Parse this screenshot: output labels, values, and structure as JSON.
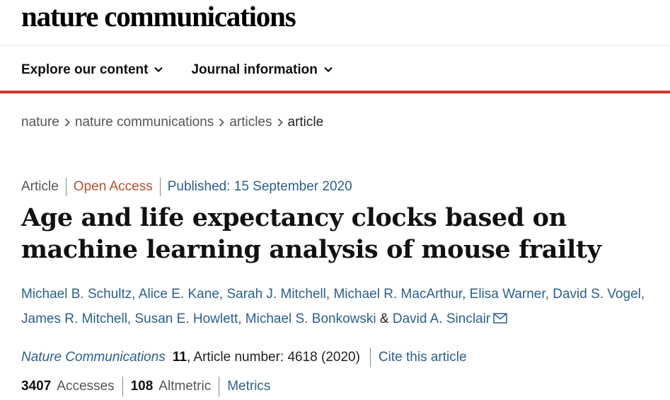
{
  "header": {
    "logo_text": "nature communications",
    "nav": [
      {
        "label": "Explore our content"
      },
      {
        "label": "Journal information"
      }
    ],
    "accent_color": "#d63128"
  },
  "breadcrumb": [
    "nature",
    "nature communications",
    "articles",
    "article"
  ],
  "article": {
    "type": "Article",
    "access": "Open Access",
    "published": "Published: 15 September 2020",
    "title": "Age and life expectancy clocks based on machine learning analysis of mouse frailty",
    "authors_line1": [
      "Michael B. Schultz",
      "Alice E. Kane",
      "Sarah J. Mitchell",
      "Michael R. MacArthur",
      "Elisa Warner",
      "David S. Vogel"
    ],
    "authors_line2": [
      "James R. Mitchell",
      "Susan E. Howlett",
      "Michael S. Bonkowski"
    ],
    "last_author": "David A. Sinclair",
    "ampersand": "&",
    "journal": "Nature Communications",
    "volume": "11",
    "article_number": ", Article number: 4618 (2020)",
    "cite_label": "Cite this article"
  },
  "metrics": {
    "accesses_count": "3407",
    "accesses_label": "Accesses",
    "altmetric_count": "108",
    "altmetric_label": "Altmetric",
    "metrics_link": "Metrics"
  }
}
